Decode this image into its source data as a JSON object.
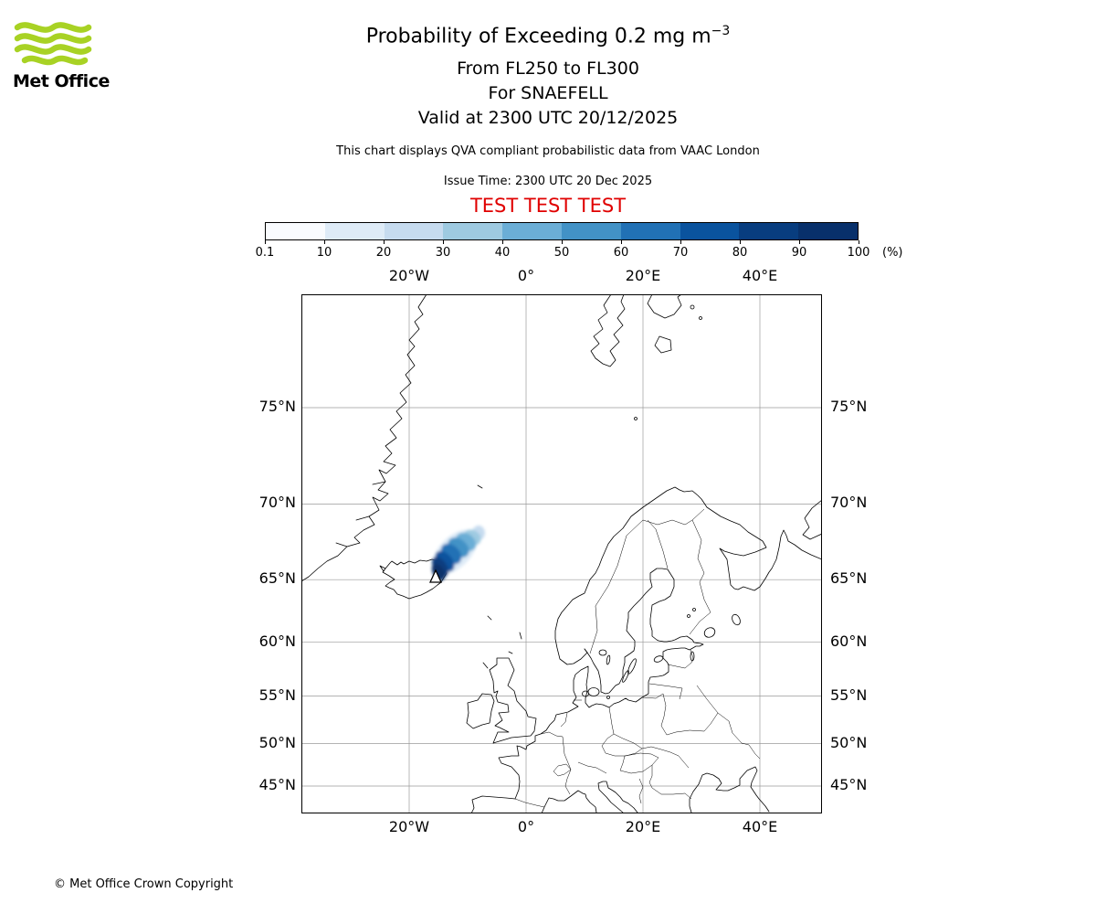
{
  "logo": {
    "text": "Met Office",
    "brand_color": "#a8d224"
  },
  "header": {
    "title_main": "Probability of Exceeding 0.2 mg m",
    "title_sup": "−3",
    "flight_levels": "From FL250 to FL300",
    "volcano": "For SNAEFELL",
    "valid_time": "Valid at 2300 UTC 20/12/2025",
    "description": "This chart displays QVA compliant probabilistic data from VAAC London",
    "issue_time": "Issue Time: 2300 UTC 20 Dec 2025",
    "test_banner": "TEST TEST TEST",
    "test_color": "#e00000"
  },
  "colorbar": {
    "tick_labels": [
      "0.1",
      "10",
      "20",
      "30",
      "40",
      "50",
      "60",
      "70",
      "80",
      "90",
      "100"
    ],
    "unit": "(%)",
    "segment_colors": [
      "#f9fbfe",
      "#deebf7",
      "#c6dbef",
      "#9ecae1",
      "#6baed6",
      "#4292c6",
      "#2171b5",
      "#0a539e",
      "#083d7f",
      "#08306b"
    ]
  },
  "map": {
    "lon_labels": [
      "20°W",
      "0°",
      "20°E",
      "40°E"
    ],
    "lat_labels": [
      "75°N",
      "70°N",
      "65°N",
      "60°N",
      "55°N",
      "50°N",
      "45°N"
    ],
    "marker": "volcano-triangle"
  },
  "footer": {
    "copyright": "© Met Office Crown Copyright"
  }
}
